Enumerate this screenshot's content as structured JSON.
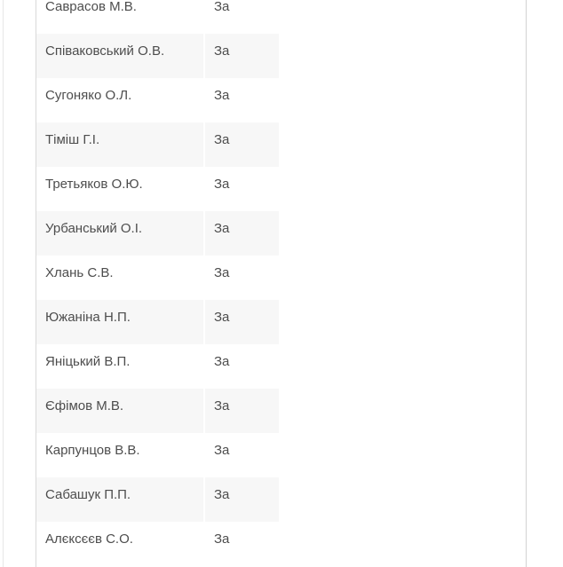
{
  "table": {
    "description": "roll-call-voting-results",
    "columns": [
      "deputy_name",
      "vote"
    ],
    "rows": [
      {
        "name": "Саврасов М.В.",
        "vote": "За"
      },
      {
        "name": "Співаковський О.В.",
        "vote": "За"
      },
      {
        "name": "Сугоняко О.Л.",
        "vote": "За"
      },
      {
        "name": "Тіміш Г.І.",
        "vote": "За"
      },
      {
        "name": "Третьяков О.Ю.",
        "vote": "За"
      },
      {
        "name": "Урбанський О.І.",
        "vote": "За"
      },
      {
        "name": "Хлань С.В.",
        "vote": "За"
      },
      {
        "name": "Южаніна Н.П.",
        "vote": "За"
      },
      {
        "name": "Яніцький В.П.",
        "vote": "За"
      },
      {
        "name": "Єфімов М.В.",
        "vote": "За"
      },
      {
        "name": "Карпунцов В.В.",
        "vote": "За"
      },
      {
        "name": "Сабашук П.П.",
        "vote": "За"
      },
      {
        "name": "Алєксєєв С.О.",
        "vote": "За"
      }
    ]
  },
  "colors": {
    "row_alt_bg": "#f7f7f7",
    "text": "#4d4d4d",
    "cell_divider": "#ffffff",
    "line_page_left": "#e7e7e7",
    "line_table_left": "#d9d9d9",
    "line_page_right": "#d2d2d2"
  }
}
